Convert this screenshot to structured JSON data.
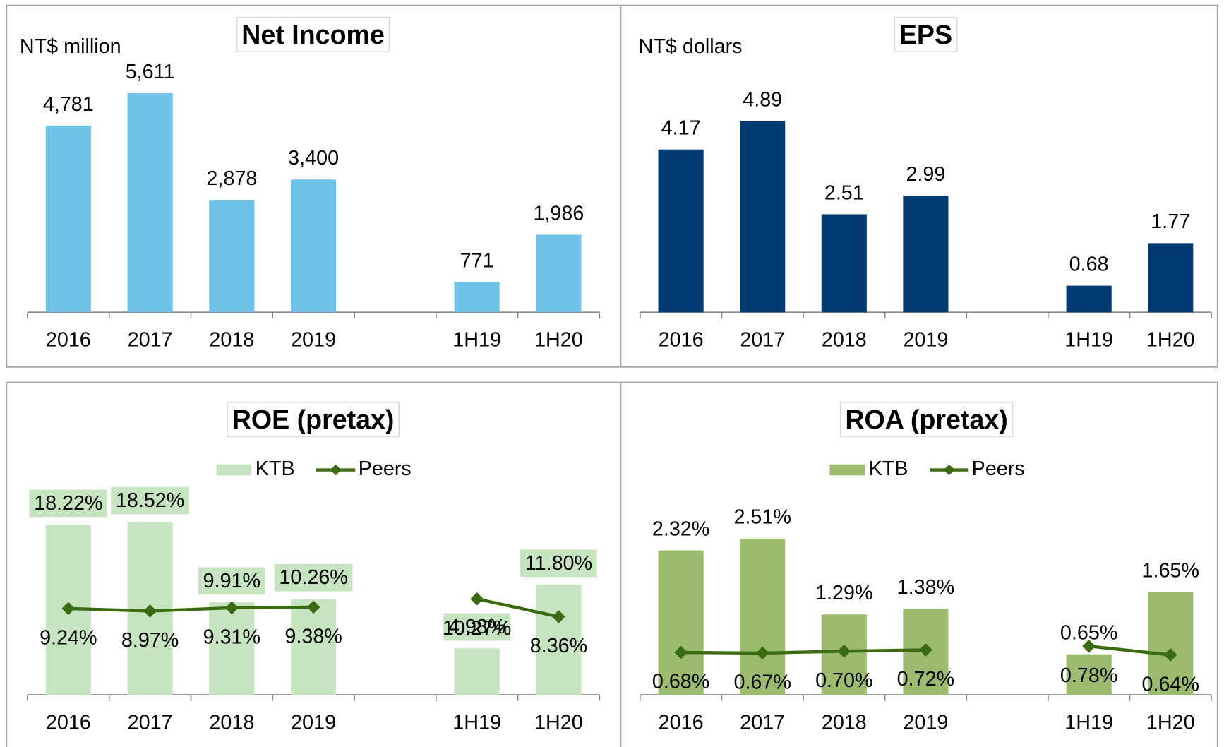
{
  "chart_data": [
    {
      "type": "bar",
      "title": "Net Income",
      "unit_label": "NT$ million",
      "categories": [
        "2016",
        "2017",
        "2018",
        "2019",
        null,
        "1H19",
        "1H20"
      ],
      "values": [
        4781,
        5611,
        2878,
        3400,
        null,
        771,
        1986
      ],
      "value_labels": [
        "4,781",
        "5,611",
        "2,878",
        "3,400",
        null,
        "771",
        "1,986"
      ],
      "color": "#6fc3e8",
      "ylim": [
        0,
        6000
      ]
    },
    {
      "type": "bar",
      "title": "EPS",
      "unit_label": "NT$ dollars",
      "categories": [
        "2016",
        "2017",
        "2018",
        "2019",
        null,
        "1H19",
        "1H20"
      ],
      "values": [
        4.17,
        4.89,
        2.51,
        2.99,
        null,
        0.68,
        1.77
      ],
      "color": "#003a70",
      "ylim": [
        0,
        6
      ]
    },
    {
      "type": "combo",
      "title": "ROE (pretax)",
      "categories": [
        "2016",
        "2017",
        "2018",
        "2019",
        null,
        "1H19",
        "1H20"
      ],
      "series": [
        {
          "name": "KTB",
          "type": "bar",
          "color": "#c6e4bf",
          "label_box": true,
          "values": [
            18.22,
            18.52,
            9.91,
            10.26,
            null,
            4.98,
            11.8
          ],
          "value_labels": [
            "18.22%",
            "18.52%",
            "9.91%",
            "10.26%",
            null,
            "4.98%",
            "11.80%"
          ]
        },
        {
          "name": "Peers",
          "type": "line",
          "color": "#3a6b10",
          "values": [
            9.24,
            8.97,
            9.31,
            9.38,
            null,
            10.27,
            8.36
          ],
          "value_labels": [
            "9.24%",
            "8.97%",
            "9.31%",
            "9.38%",
            null,
            "10.27%",
            "8.36%"
          ]
        }
      ],
      "ylim": [
        0,
        20
      ]
    },
    {
      "type": "combo",
      "title": "ROA (pretax)",
      "categories": [
        "2016",
        "2017",
        "2018",
        "2019",
        null,
        "1H19",
        "1H20"
      ],
      "series": [
        {
          "name": "KTB",
          "type": "bar",
          "color": "#9bbb6e",
          "label_box": false,
          "values": [
            2.32,
            2.51,
            1.29,
            1.38,
            null,
            0.65,
            1.65
          ],
          "value_labels": [
            "2.32%",
            "2.51%",
            "1.29%",
            "1.38%",
            null,
            "0.65%",
            "1.65%"
          ]
        },
        {
          "name": "Peers",
          "type": "line",
          "color": "#3a6b10",
          "values": [
            0.68,
            0.67,
            0.7,
            0.72,
            null,
            0.78,
            0.64
          ],
          "value_labels": [
            "0.68%",
            "0.67%",
            "0.70%",
            "0.72%",
            null,
            "0.78%",
            "0.64%"
          ]
        }
      ],
      "ylim": [
        0,
        3
      ]
    }
  ]
}
